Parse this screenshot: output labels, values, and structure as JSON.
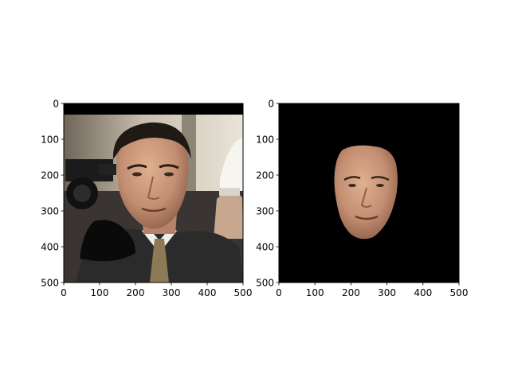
{
  "chart_data": [
    {
      "type": "image",
      "image_description": "photo: man in dark suit and patterned tie, camera at left, crowd behind; black band across top and dark blob lower-left",
      "xlim": [
        0,
        500
      ],
      "ylim": [
        500,
        0
      ],
      "x_ticks": [
        0,
        100,
        200,
        300,
        400,
        500
      ],
      "y_ticks": [
        0,
        100,
        200,
        300,
        400,
        500
      ],
      "title": "",
      "xlabel": "",
      "ylabel": ""
    },
    {
      "type": "image",
      "image_description": "segmented face on black background",
      "xlim": [
        0,
        500
      ],
      "ylim": [
        500,
        0
      ],
      "x_ticks": [
        0,
        100,
        200,
        300,
        400,
        500
      ],
      "y_ticks": [
        0,
        100,
        200,
        300,
        400,
        500
      ],
      "title": "",
      "xlabel": "",
      "ylabel": ""
    }
  ],
  "colors": {
    "axis": "#000000",
    "mask_background": "#000000",
    "suit": "#2b2b2b",
    "skin": "#c9977b",
    "hair": "#1f1a16",
    "wall": "#cfc7b6"
  },
  "icons": {
    "left_image": "face-photo",
    "right_image": "face-mask"
  }
}
